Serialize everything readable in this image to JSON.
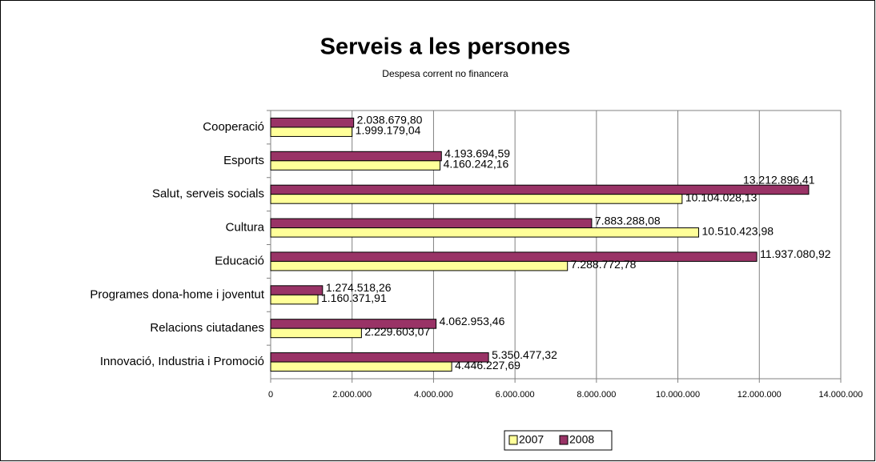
{
  "chart_data": {
    "type": "bar",
    "orientation": "horizontal",
    "title": "Serveis a les persones",
    "subtitle": "Despesa corrent no financera",
    "categories": [
      "Cooperació",
      "Esports",
      "Salut, serveis socials",
      "Cultura",
      "Educació",
      "Programes dona-home i joventut",
      "Relacions ciutadanes",
      "Innovació, Industria i Promoció"
    ],
    "series": [
      {
        "name": "2007",
        "color": "#FFFF99",
        "values": [
          1999179.04,
          4160242.16,
          10104028.13,
          10510423.98,
          7288772.78,
          1160371.91,
          2229603.07,
          4446227.69
        ],
        "value_labels": [
          "1.999.179,04",
          "4.160.242,16",
          "10.104.028,13",
          "10.510.423,98",
          "7.288.772,78",
          "1.160.371,91",
          "2.229.603,07",
          "4.446.227,69"
        ]
      },
      {
        "name": "2008",
        "color": "#993366",
        "values": [
          2038679.8,
          4193694.59,
          13212896.41,
          7883288.08,
          11937080.92,
          1274518.26,
          4062953.46,
          5350477.32
        ],
        "value_labels": [
          "2.038.679,80",
          "4.193.694,59",
          "13.212.896,41",
          "7.883.288,08",
          "11.937.080,92",
          "1.274.518,26",
          "4.062.953,46",
          "5.350.477,32"
        ]
      }
    ],
    "xlim": [
      0,
      14000000
    ],
    "xticks": [
      0,
      {
        "value": 2000000,
        "label": "2.000.000"
      },
      {
        "value": 4000000,
        "label": "4.000.000"
      },
      {
        "value": 6000000,
        "label": "6.000.000"
      },
      {
        "value": 8000000,
        "label": "8.000.000"
      },
      {
        "value": 10000000,
        "label": "10.000.000"
      },
      {
        "value": 12000000,
        "label": "12.000.000"
      },
      {
        "value": 14000000,
        "label": "14.000.000"
      }
    ],
    "grid": true,
    "legend": "bottom"
  }
}
